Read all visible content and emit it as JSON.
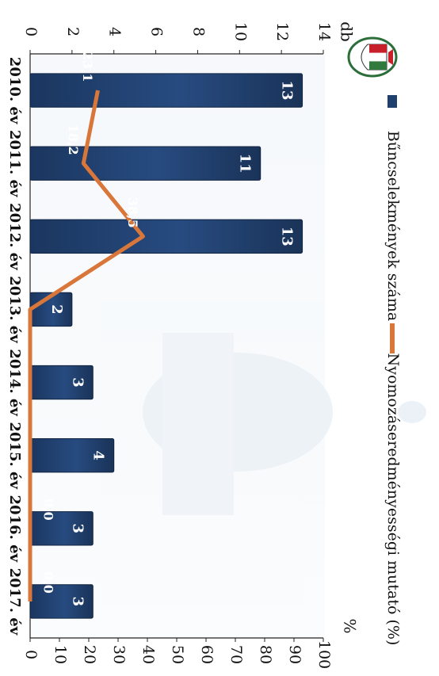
{
  "chart_data": {
    "type": "bar",
    "orientation": "rotated-90-clockwise",
    "categories": [
      "2010. év",
      "2011. év",
      "2012. év",
      "2013. év",
      "2014. év",
      "2015. év",
      "2016. év",
      "2017. év"
    ],
    "series": [
      {
        "name": "Bűncselekmények száma",
        "type": "bar",
        "axis": "primary",
        "values": [
          13,
          11,
          13,
          2,
          3,
          4,
          3,
          3
        ],
        "data_labels": [
          "13",
          "11",
          "13",
          "2",
          "3",
          "4",
          "3",
          "3"
        ],
        "color": "#1f3f6e"
      },
      {
        "name": "Nyomozáseredményességi mutató (%)",
        "type": "line",
        "axis": "secondary",
        "values": [
          23.1,
          18.2,
          38.5,
          0,
          0,
          0,
          0,
          0
        ],
        "data_labels": [
          "23,1",
          "18,2",
          "38,5",
          "",
          "",
          "",
          "0,0",
          "0,0"
        ],
        "color": "#d9773a"
      }
    ],
    "primary_axis": {
      "label": "db",
      "range": [
        0,
        14
      ],
      "ticks": [
        0,
        2,
        4,
        6,
        8,
        10,
        12,
        14
      ]
    },
    "secondary_axis": {
      "label": "%",
      "range": [
        0,
        100
      ],
      "ticks": [
        0,
        10,
        20,
        30,
        40,
        50,
        60,
        70,
        80,
        90,
        100
      ]
    },
    "legend": {
      "placement": "top"
    },
    "grid": false
  }
}
